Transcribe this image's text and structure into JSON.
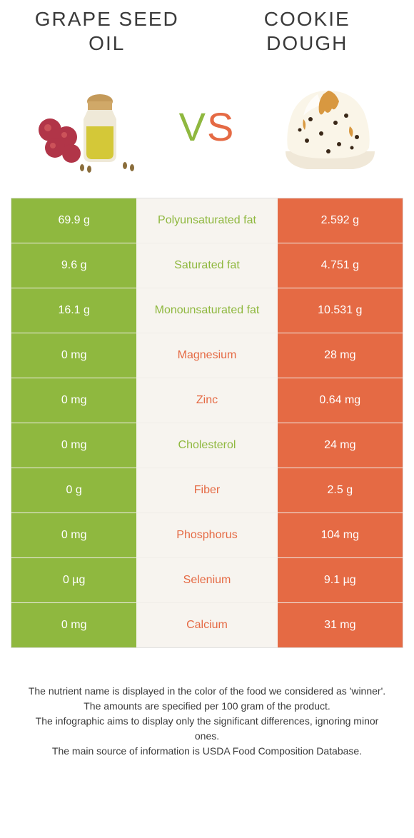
{
  "titles": {
    "left": "GRAPE SEED OIL",
    "right": "COOKIE DOUGH"
  },
  "vs": {
    "v": "V",
    "s": "S"
  },
  "colors": {
    "green": "#8fb83f",
    "orange": "#e56a44",
    "bg_mid": "#f7f4ef",
    "text": "#3a3a3a"
  },
  "rows": [
    {
      "left": "69.9 g",
      "label": "Polyunsaturated fat",
      "right": "2.592 g",
      "winner": "green"
    },
    {
      "left": "9.6 g",
      "label": "Saturated fat",
      "right": "4.751 g",
      "winner": "green"
    },
    {
      "left": "16.1 g",
      "label": "Monounsaturated fat",
      "right": "10.531 g",
      "winner": "green"
    },
    {
      "left": "0 mg",
      "label": "Magnesium",
      "right": "28 mg",
      "winner": "orange"
    },
    {
      "left": "0 mg",
      "label": "Zinc",
      "right": "0.64 mg",
      "winner": "orange"
    },
    {
      "left": "0 mg",
      "label": "Cholesterol",
      "right": "24 mg",
      "winner": "green"
    },
    {
      "left": "0 g",
      "label": "Fiber",
      "right": "2.5 g",
      "winner": "orange"
    },
    {
      "left": "0 mg",
      "label": "Phosphorus",
      "right": "104 mg",
      "winner": "orange"
    },
    {
      "left": "0 µg",
      "label": "Selenium",
      "right": "9.1 µg",
      "winner": "orange"
    },
    {
      "left": "0 mg",
      "label": "Calcium",
      "right": "31 mg",
      "winner": "orange"
    }
  ],
  "footer": {
    "line1": "The nutrient name is displayed in the color of the food we considered as 'winner'.",
    "line2": "The amounts are specified per 100 gram of the product.",
    "line3": "The infographic aims to display only the significant differences, ignoring minor ones.",
    "line4": "The main source of information is USDA Food Composition Database."
  }
}
